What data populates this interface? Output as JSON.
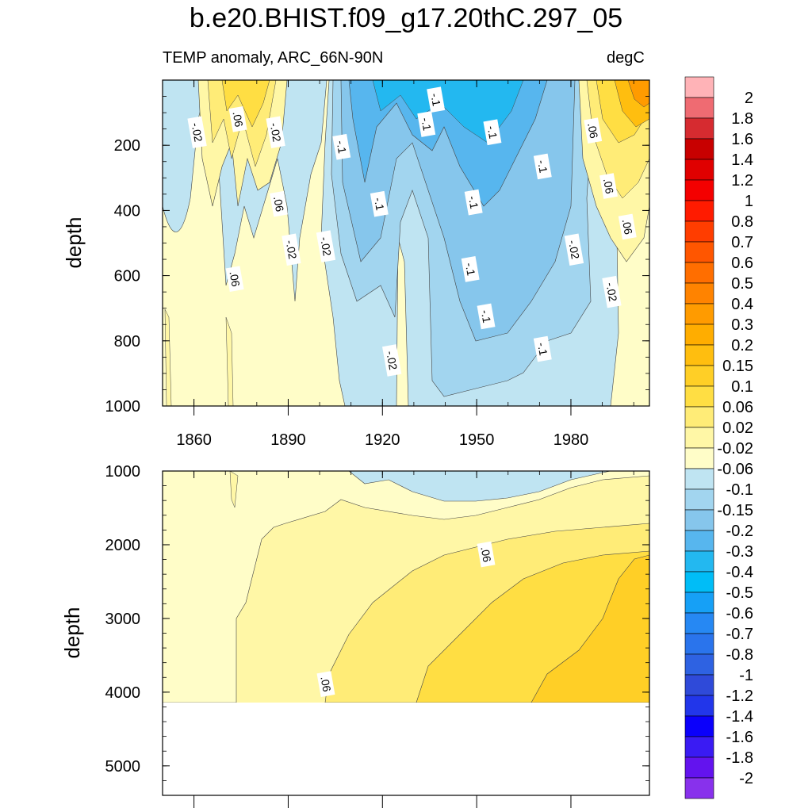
{
  "title": "b.e20.BHIST.f09_g17.20thC.297_05",
  "subtitle_left": "TEMP anomaly, ARC_66N-90N",
  "subtitle_right": "degC",
  "chart_data": [
    {
      "type": "heatmap",
      "panel": "upper",
      "xlabel": "",
      "ylabel": "depth",
      "xlim": [
        1850,
        2005
      ],
      "ylim": [
        1000,
        0
      ],
      "xticks": [
        1860,
        1890,
        1920,
        1950,
        1980
      ],
      "yticks": [
        200,
        400,
        600,
        800,
        1000
      ],
      "contour_labels": [
        {
          "label": "-.02",
          "x": 1861,
          "y": 160
        },
        {
          "label": ".06",
          "x": 1874,
          "y": 120
        },
        {
          "label": "-.02",
          "x": 1886,
          "y": 160
        },
        {
          "label": "-.1",
          "x": 1907,
          "y": 205
        },
        {
          "label": "-.1",
          "x": 1934,
          "y": 135
        },
        {
          "label": "-.1",
          "x": 1919,
          "y": 380
        },
        {
          "label": "-.1",
          "x": 1937,
          "y": 60
        },
        {
          "label": "-.1",
          "x": 1955,
          "y": 160
        },
        {
          "label": "-.1",
          "x": 1949,
          "y": 375
        },
        {
          "label": "-.1",
          "x": 1948,
          "y": 580
        },
        {
          "label": "-.1",
          "x": 1953,
          "y": 725
        },
        {
          "label": "-.1",
          "x": 1971,
          "y": 265
        },
        {
          "label": "-.1",
          "x": 1971,
          "y": 825
        },
        {
          "label": ".06",
          "x": 1887,
          "y": 380
        },
        {
          "label": "-.02",
          "x": 1891,
          "y": 520
        },
        {
          "label": "-.02",
          "x": 1902,
          "y": 510
        },
        {
          "label": ".06",
          "x": 1873,
          "y": 610
        },
        {
          "label": "-.02",
          "x": 1923,
          "y": 860
        },
        {
          "label": ".06",
          "x": 1987,
          "y": 155
        },
        {
          "label": ".06",
          "x": 1992,
          "y": 325
        },
        {
          "label": ".06",
          "x": 1998,
          "y": 450
        },
        {
          "label": "-.02",
          "x": 1981,
          "y": 520
        },
        {
          "label": "-.02",
          "x": 1993,
          "y": 650
        }
      ]
    },
    {
      "type": "heatmap",
      "panel": "lower",
      "xlabel": "",
      "ylabel": "depth",
      "xlim": [
        1850,
        2005
      ],
      "ylim": [
        5400,
        1000
      ],
      "yticks": [
        1000,
        2000,
        3000,
        4000,
        5000
      ],
      "data_bottom_depth": 4100,
      "contour_labels": [
        {
          "label": ".06",
          "x": 1953,
          "y": 2130
        },
        {
          "label": ".06",
          "x": 1902,
          "y": 3890
        }
      ]
    }
  ],
  "colorbar": {
    "labels": [
      "2",
      "1.8",
      "1.6",
      "1.4",
      "1.2",
      "1",
      "0.8",
      "0.7",
      "0.6",
      "0.5",
      "0.4",
      "0.3",
      "0.2",
      "0.15",
      "0.1",
      "0.06",
      "0.02",
      "-0.02",
      "-0.06",
      "-0.1",
      "-0.15",
      "-0.2",
      "-0.3",
      "-0.4",
      "-0.5",
      "-0.6",
      "-0.7",
      "-0.8",
      "-1",
      "-1.2",
      "-1.4",
      "-1.6",
      "-1.8",
      "-2"
    ],
    "colors": [
      "#ffb3b7",
      "#ef6b72",
      "#d62b30",
      "#c80000",
      "#e00000",
      "#f40000",
      "#ff1b00",
      "#ff3d00",
      "#ff5600",
      "#ff6e00",
      "#ff8300",
      "#ff9b00",
      "#ffad00",
      "#ffbe0f",
      "#ffcf26",
      "#ffde43",
      "#ffec77",
      "#fff7a6",
      "#fffdc8",
      "#bfe4f2",
      "#a2d5ef",
      "#86c6ec",
      "#57b6ee",
      "#23b8f0",
      "#00bdf7",
      "#16a0f6",
      "#2688f3",
      "#2a74ec",
      "#2e62e2",
      "#2f4ad9",
      "#2236ea",
      "#0b00fb",
      "#3a1bf3",
      "#6313ee",
      "#8831ec"
    ]
  }
}
